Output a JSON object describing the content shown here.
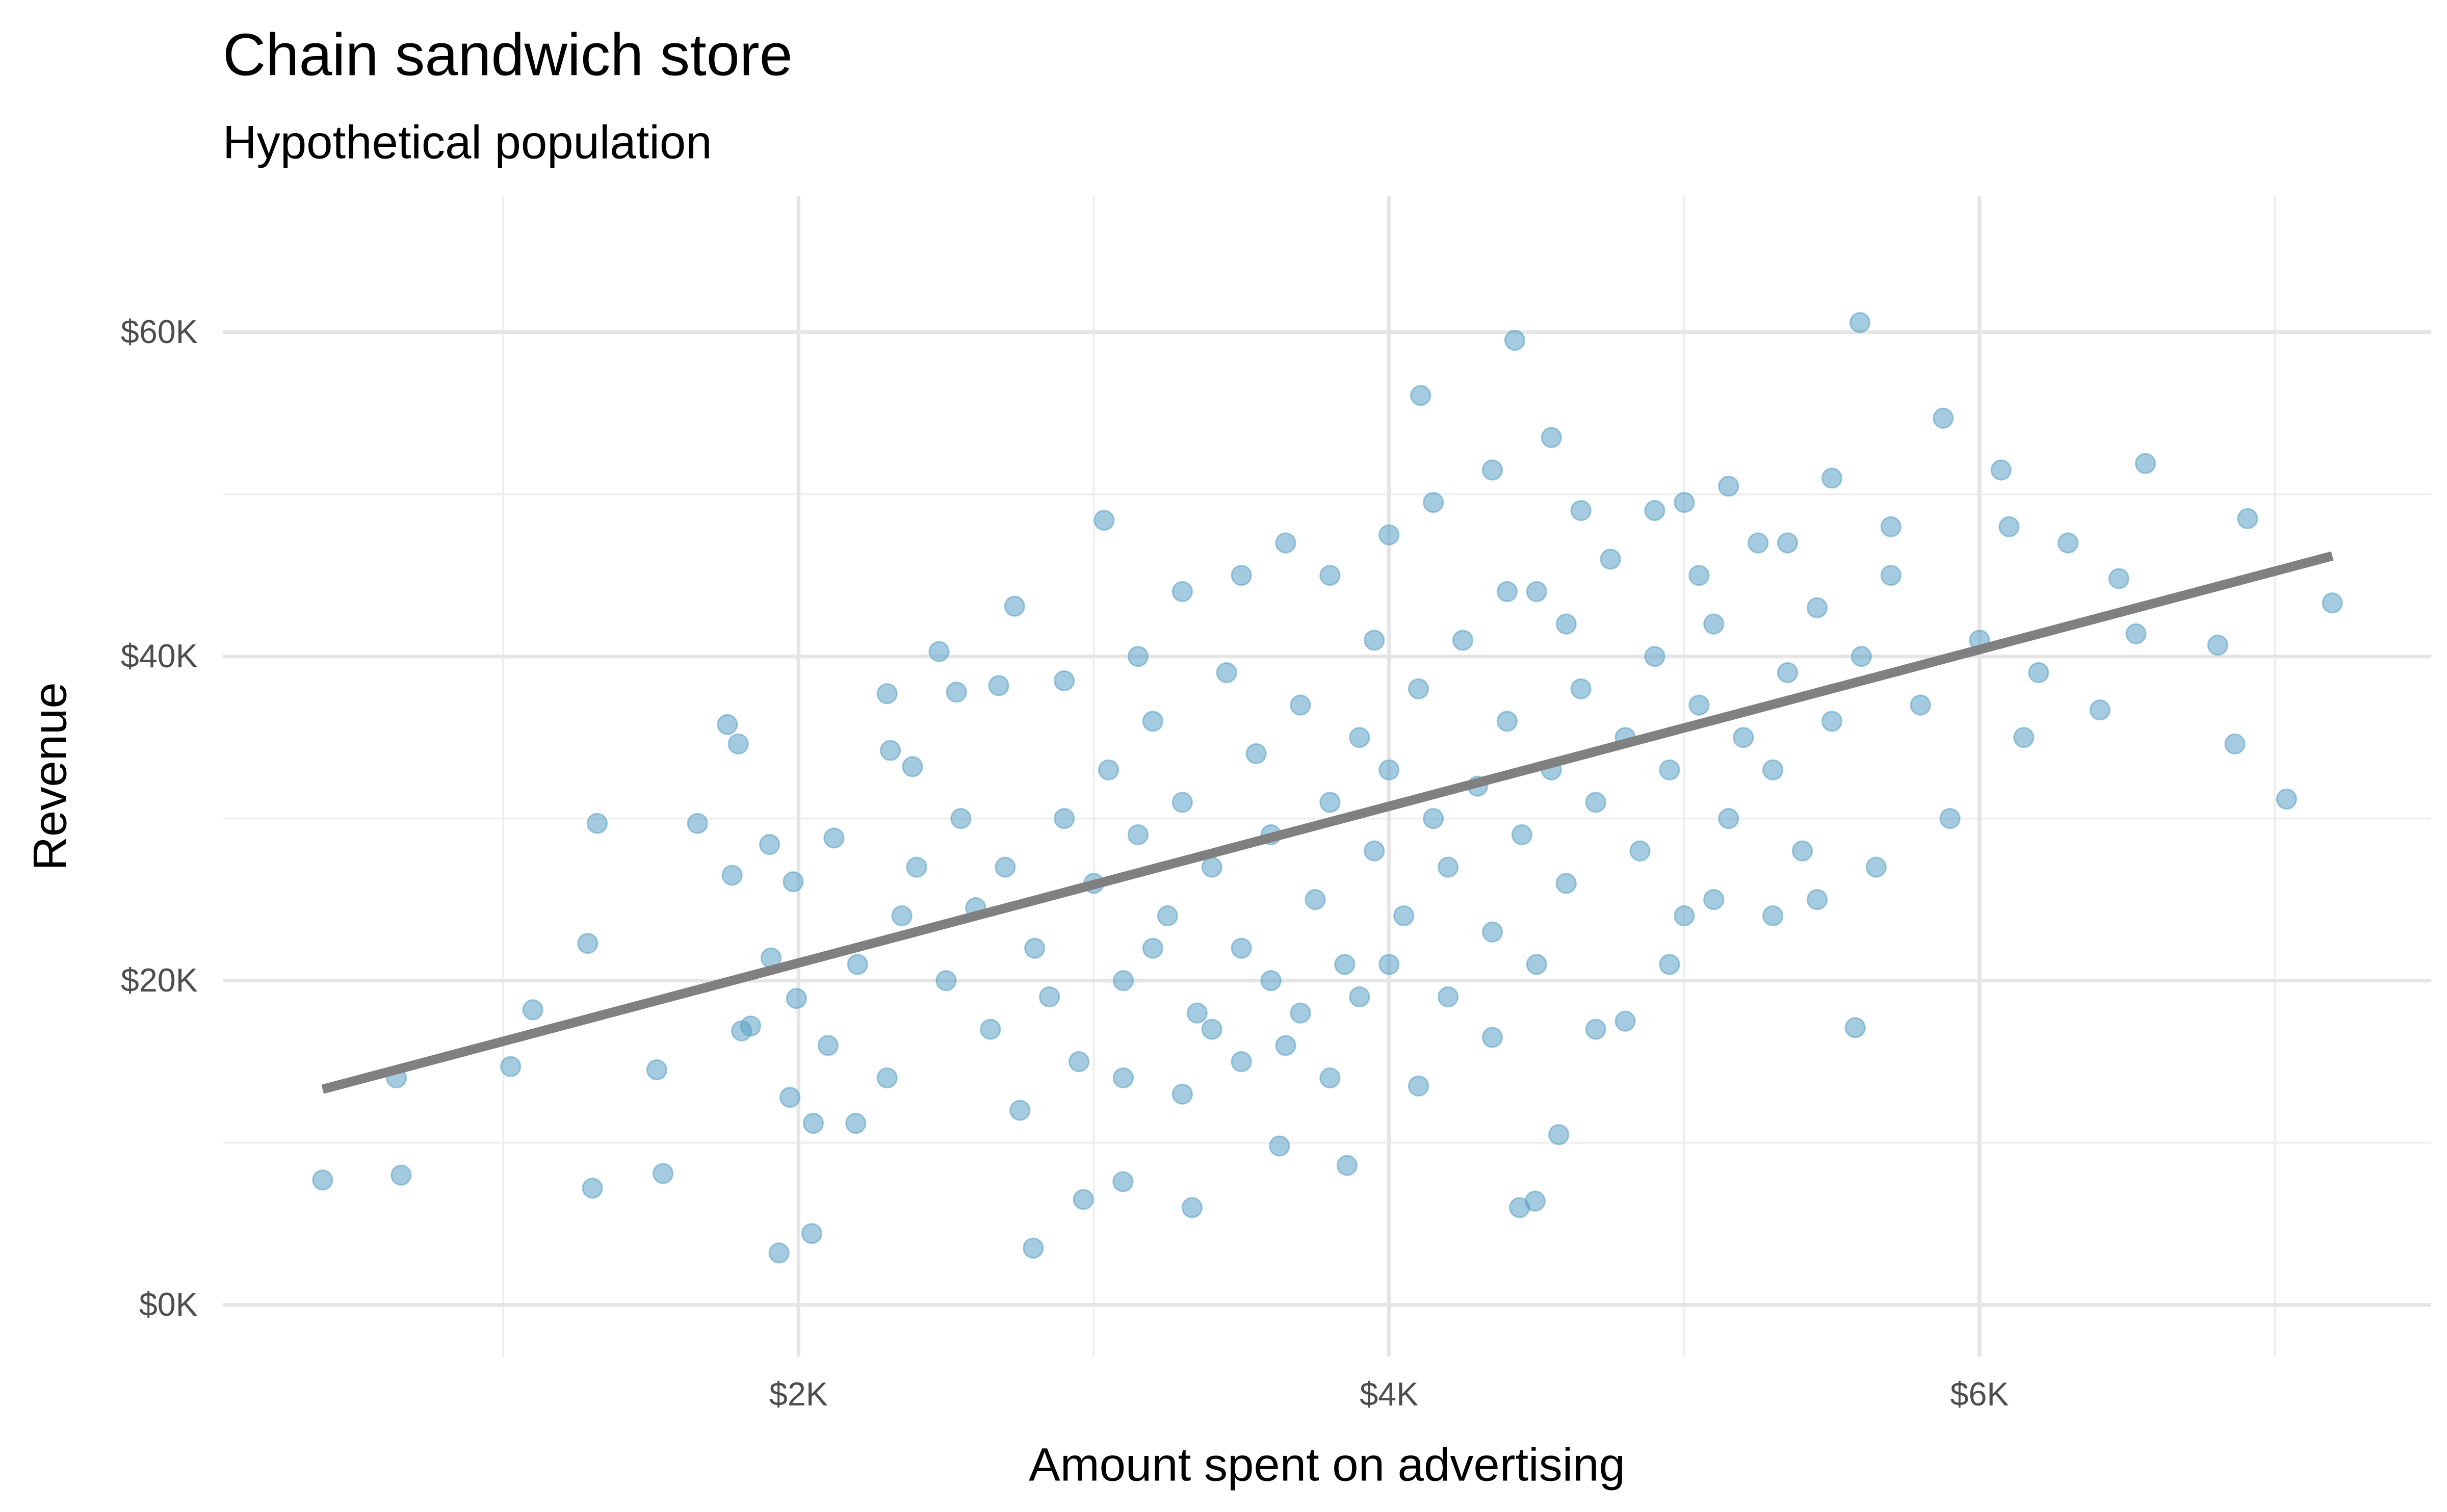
{
  "chart_data": {
    "type": "scatter",
    "title": "Chain sandwich store",
    "subtitle": "Hypothetical population",
    "xlabel": "Amount spent on advertising",
    "ylabel": "Revenue",
    "xlim": [
      50,
      7530
    ],
    "ylim": [
      -3200,
      68400
    ],
    "xticks": [
      {
        "value": 2000,
        "label": "$2K"
      },
      {
        "value": 4000,
        "label": "$4K"
      },
      {
        "value": 6000,
        "label": "$6K"
      }
    ],
    "yticks": [
      {
        "value": 0,
        "label": "$0K"
      },
      {
        "value": 20000,
        "label": "$20K"
      },
      {
        "value": 40000,
        "label": "$40K"
      },
      {
        "value": 60000,
        "label": "$60K"
      }
    ],
    "x_minor_grid": [
      1000,
      3000,
      5000,
      7000
    ],
    "y_minor_grid": [
      10000,
      30000,
      50000
    ],
    "grid": true,
    "point_color": "#5aa0c4",
    "point_opacity": 0.55,
    "x": [
      388,
      638,
      654,
      1025,
      1100,
      1286,
      1302,
      1318,
      1520,
      1541,
      1658,
      1759,
      1796,
      1775,
      1807,
      1838,
      1902,
      1907,
      1934,
      1982,
      1993,
      1971,
      2045,
      2050,
      2120,
      2194,
      2300,
      2311,
      2386,
      2476,
      2535,
      2678,
      2732,
      3035,
      3099,
      2965,
      2795,
      3333,
      4107,
      4426,
      5595,
      5877,
      6562,
      7195,
      7040,
      6865,
      6908,
      6807,
      4575,
      4442,
      4495,
      3858,
      3629,
      5579,
      6073,
      6408,
      6472,
      6530,
      2600,
      2700,
      2800,
      2900,
      3000,
      3050,
      3100,
      3150,
      3200,
      3250,
      3300,
      3350,
      3400,
      3450,
      3500,
      3550,
      3600,
      3650,
      3700,
      3750,
      3800,
      3850,
      3900,
      3950,
      4000,
      4050,
      4100,
      4150,
      4200,
      4250,
      4300,
      4350,
      4400,
      4450,
      4500,
      4550,
      4600,
      4650,
      4700,
      4750,
      4800,
      4850,
      4900,
      4950,
      5000,
      5050,
      5100,
      5150,
      5200,
      5250,
      5300,
      5350,
      5400,
      5450,
      5500,
      5600,
      5650,
      5700,
      5800,
      5900,
      6000,
      6100,
      6150,
      6200,
      6300,
      2300,
      2500,
      2650,
      2750,
      2850,
      2950,
      3100,
      3200,
      3300,
      3400,
      3500,
      3600,
      3700,
      3800,
      3900,
      4000,
      4100,
      4200,
      4350,
      4500,
      4700,
      4800,
      4950,
      5100,
      5300,
      5450,
      3300,
      3500,
      3650,
      3800,
      4000,
      4150,
      4350,
      4550,
      4650,
      4900,
      5000,
      5150,
      5350,
      5500,
      5700,
      3950,
      4400,
      4600,
      5050,
      2900,
      3150,
      2400,
      2200,
      2100,
      2350,
      2550
    ],
    "y": [
      7700,
      14000,
      8000,
      14700,
      18200,
      22300,
      7200,
      29700,
      14500,
      8100,
      29700,
      35800,
      34600,
      26500,
      16900,
      17200,
      28400,
      21400,
      3200,
      26100,
      18900,
      12800,
      4400,
      11200,
      28800,
      11200,
      37700,
      34200,
      33200,
      40300,
      37800,
      38200,
      43100,
      48400,
      7600,
      6500,
      3500,
      6000,
      56100,
      59500,
      60600,
      54700,
      51900,
      43300,
      31200,
      34600,
      48500,
      40700,
      10500,
      6000,
      6400,
      8600,
      9800,
      17100,
      51500,
      36700,
      44800,
      41400,
      24500,
      27000,
      22000,
      30000,
      26000,
      33000,
      20000,
      29000,
      36000,
      24000,
      31000,
      18000,
      27000,
      39000,
      22000,
      34000,
      29000,
      16000,
      37000,
      25000,
      31000,
      21000,
      35000,
      28000,
      33000,
      24000,
      38000,
      30000,
      27000,
      41000,
      32000,
      23000,
      36000,
      29000,
      44000,
      33000,
      26000,
      38000,
      31000,
      46000,
      35000,
      28000,
      40000,
      33000,
      24000,
      37000,
      42000,
      30000,
      35000,
      47000,
      33000,
      39000,
      28000,
      43000,
      36000,
      40000,
      27000,
      45000,
      37000,
      30000,
      41000,
      48000,
      35000,
      39000,
      47000,
      14000,
      20000,
      17000,
      12000,
      19000,
      15000,
      14000,
      22000,
      13000,
      17000,
      15000,
      20000,
      18000,
      14000,
      19000,
      21000,
      13500,
      19000,
      16500,
      21000,
      17000,
      17500,
      21000,
      25000,
      24000,
      25000,
      44000,
      45000,
      47000,
      45000,
      47500,
      49500,
      51500,
      53500,
      49000,
      49000,
      49500,
      50500,
      47000,
      51000,
      48000,
      41000,
      44000,
      42000,
      45000,
      38500,
      40000,
      27000,
      21000,
      16000,
      24000,
      30000
    ],
    "trend": {
      "x": [
        388,
        7195
      ],
      "y": [
        13300,
        46200
      ],
      "color": "#808080"
    }
  }
}
